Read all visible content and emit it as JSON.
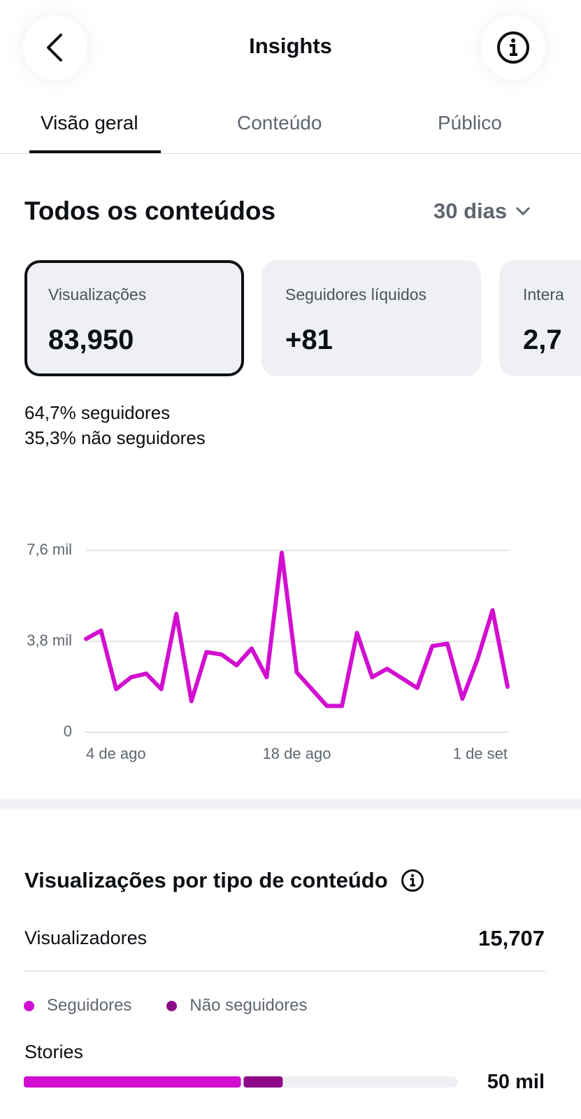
{
  "header": {
    "title": "Insights"
  },
  "tabs": [
    "Visão geral",
    "Conteúdo",
    "Público"
  ],
  "section": {
    "title": "Todos os conteúdos",
    "period": "30 dias"
  },
  "cards": [
    {
      "label": "Visualizações",
      "value": "83,950"
    },
    {
      "label": "Seguidores líquidos",
      "value": "+81"
    },
    {
      "label": "Intera",
      "value": "2,7"
    }
  ],
  "split": [
    {
      "pct": "64,7%",
      "label": "seguidores"
    },
    {
      "pct": "35,3%",
      "label": "não seguidores"
    }
  ],
  "chart": {
    "type": "line",
    "color": "#d20fd0",
    "grid": true,
    "categories": [
      "4 de ago",
      null,
      null,
      null,
      null,
      null,
      null,
      null,
      null,
      null,
      null,
      null,
      null,
      null,
      "18 de ago",
      null,
      null,
      null,
      null,
      null,
      null,
      null,
      null,
      null,
      null,
      null,
      null,
      null,
      "1 de set"
    ],
    "values": [
      3900,
      4250,
      1800,
      2300,
      2450,
      1800,
      4950,
      1300,
      3350,
      3250,
      2800,
      3500,
      2300,
      7500,
      2500,
      1800,
      1100,
      1100,
      4150,
      2300,
      2650,
      2250,
      1850,
      3600,
      3700,
      1400,
      3050,
      5100,
      1900
    ],
    "ylim": [
      0,
      7600
    ],
    "yticks": [
      0,
      {
        "value": 3800,
        "label": "3,8 mil"
      },
      {
        "value": 7600,
        "label": "7,6 mil"
      }
    ]
  },
  "breakdown": {
    "title": "Visualizações por tipo de conteúdo",
    "viewers_label": "Visualizadores",
    "viewers_value": "15,707",
    "legend": [
      {
        "name": "Seguidores",
        "color": "#d20fd0"
      },
      {
        "name": "Não seguidores",
        "color": "#8c0a88"
      }
    ],
    "xlim": [
      0,
      100
    ],
    "rows": [
      {
        "label": "Stories",
        "value": "50 mil",
        "seguidores": 50,
        "nao_seguidores": 9
      }
    ]
  }
}
